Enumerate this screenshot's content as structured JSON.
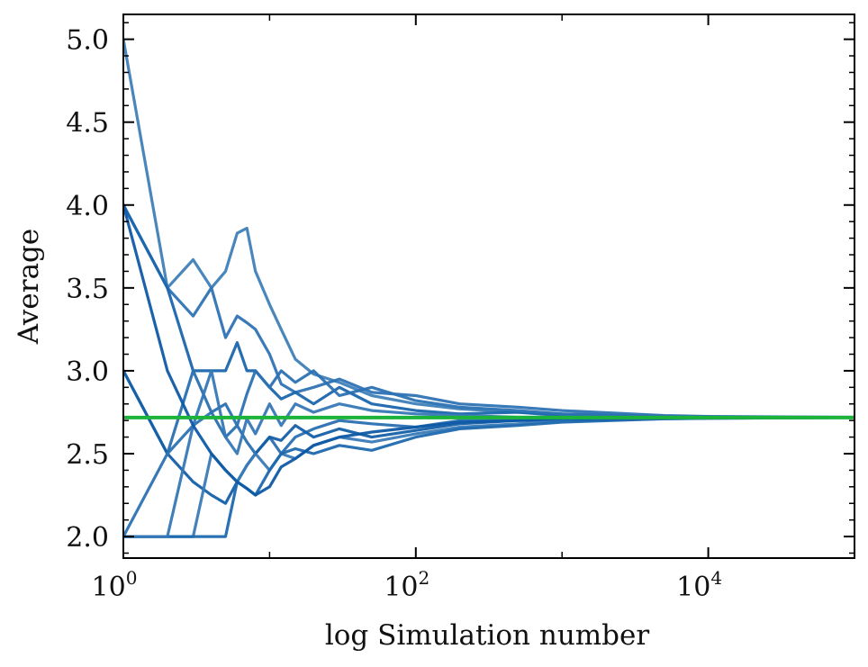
{
  "chart_data": {
    "type": "line",
    "title": "",
    "xlabel": "log Simulation number",
    "ylabel": "Average",
    "xscale": "log",
    "xlim": [
      1,
      100000
    ],
    "ylim": [
      1.87,
      5.15
    ],
    "grid": false,
    "legend": "none",
    "x_ticks": [
      {
        "value": 1,
        "base": "10",
        "exp": "0"
      },
      {
        "value": 100,
        "base": "10",
        "exp": "2"
      },
      {
        "value": 10000,
        "base": "10",
        "exp": "4"
      }
    ],
    "y_ticks": [
      {
        "value": 2.0,
        "label": "2.0"
      },
      {
        "value": 2.5,
        "label": "2.5"
      },
      {
        "value": 3.0,
        "label": "3.0"
      },
      {
        "value": 3.5,
        "label": "3.5"
      },
      {
        "value": 4.0,
        "label": "4.0"
      },
      {
        "value": 4.5,
        "label": "4.5"
      },
      {
        "value": 5.0,
        "label": "5.0"
      }
    ],
    "series": [
      {
        "x": [
          1,
          2,
          3,
          4,
          5,
          6,
          7,
          8,
          10,
          12,
          15,
          20,
          30,
          50,
          100,
          200,
          500,
          1000,
          5000,
          10000,
          100000
        ],
        "values": [
          5.0,
          3.5,
          3.67,
          3.5,
          3.6,
          3.83,
          3.86,
          3.6,
          3.4,
          3.25,
          3.07,
          2.98,
          2.93,
          2.85,
          2.8,
          2.77,
          2.75,
          2.74,
          2.725,
          2.722,
          2.719
        ]
      },
      {
        "x": [
          1,
          2,
          3,
          4,
          5,
          6,
          7,
          8,
          10,
          12,
          15,
          20,
          30,
          50,
          100,
          200,
          500,
          1000,
          5000,
          10000,
          100000
        ],
        "values": [
          4.0,
          3.5,
          3.33,
          3.5,
          3.2,
          3.33,
          3.29,
          3.25,
          3.1,
          2.92,
          2.87,
          2.9,
          2.95,
          2.87,
          2.85,
          2.8,
          2.78,
          2.76,
          2.73,
          2.725,
          2.72
        ]
      },
      {
        "x": [
          1,
          2,
          3,
          4,
          5,
          6,
          7,
          8,
          10,
          12,
          15,
          20,
          30,
          50,
          100,
          200,
          500,
          1000,
          5000,
          10000,
          100000
        ],
        "values": [
          4.0,
          3.5,
          3.0,
          3.0,
          3.0,
          3.17,
          3.0,
          3.0,
          2.9,
          2.83,
          2.87,
          2.8,
          2.9,
          2.8,
          2.76,
          2.74,
          2.75,
          2.73,
          2.72,
          2.72,
          2.718
        ]
      },
      {
        "x": [
          1,
          2,
          3,
          4,
          5,
          6,
          7,
          8,
          10,
          12,
          15,
          20,
          30,
          50,
          100,
          200,
          500,
          1000,
          5000,
          10000,
          100000
        ],
        "values": [
          3.0,
          2.5,
          3.0,
          2.75,
          2.6,
          2.67,
          2.57,
          2.5,
          2.6,
          2.5,
          2.6,
          2.65,
          2.7,
          2.68,
          2.66,
          2.7,
          2.7,
          2.71,
          2.715,
          2.716,
          2.718
        ]
      },
      {
        "x": [
          1,
          2,
          3,
          4,
          5,
          6,
          7,
          8,
          10,
          12,
          15,
          20,
          30,
          50,
          100,
          200,
          500,
          1000,
          5000,
          10000,
          100000
        ],
        "values": [
          3.0,
          2.5,
          2.33,
          2.25,
          2.2,
          2.33,
          2.43,
          2.5,
          2.6,
          2.58,
          2.67,
          2.6,
          2.65,
          2.6,
          2.64,
          2.68,
          2.7,
          2.7,
          2.712,
          2.715,
          2.718
        ]
      },
      {
        "x": [
          1,
          2,
          3,
          4,
          5,
          6,
          7,
          8,
          10,
          12,
          15,
          20,
          30,
          50,
          100,
          200,
          500,
          1000,
          5000,
          10000,
          100000
        ],
        "values": [
          2.0,
          2.0,
          2.0,
          2.5,
          2.4,
          2.33,
          2.43,
          2.5,
          2.4,
          2.5,
          2.47,
          2.55,
          2.6,
          2.57,
          2.62,
          2.66,
          2.68,
          2.7,
          2.71,
          2.714,
          2.718
        ]
      },
      {
        "x": [
          1,
          2,
          3,
          4,
          5,
          6,
          7,
          8,
          10,
          12,
          15,
          20,
          30,
          50,
          100,
          200,
          500,
          1000,
          5000,
          10000,
          100000
        ],
        "values": [
          2.0,
          2.0,
          2.0,
          2.0,
          2.0,
          2.33,
          2.29,
          2.25,
          2.4,
          2.5,
          2.53,
          2.5,
          2.55,
          2.52,
          2.6,
          2.65,
          2.67,
          2.69,
          2.71,
          2.713,
          2.718
        ]
      },
      {
        "x": [
          1,
          2,
          3,
          4,
          5,
          6,
          7,
          8,
          10,
          12,
          15,
          20,
          30,
          50,
          100,
          200,
          500,
          1000,
          5000,
          10000,
          100000
        ],
        "values": [
          2.0,
          2.5,
          2.67,
          2.75,
          2.8,
          2.67,
          2.86,
          3.0,
          2.9,
          3.0,
          2.93,
          3.0,
          2.85,
          2.9,
          2.82,
          2.78,
          2.76,
          2.74,
          2.725,
          2.72,
          2.718
        ]
      },
      {
        "x": [
          1,
          2,
          3,
          4,
          5,
          6,
          7,
          8,
          10,
          12,
          15,
          20,
          30,
          50,
          100,
          200,
          500,
          1000,
          5000,
          10000,
          100000
        ],
        "values": [
          2.0,
          2.0,
          2.67,
          3.0,
          2.6,
          2.5,
          2.71,
          2.62,
          2.8,
          2.67,
          2.8,
          2.75,
          2.8,
          2.76,
          2.74,
          2.73,
          2.72,
          2.72,
          2.718,
          2.718,
          2.718
        ]
      },
      {
        "x": [
          1,
          2,
          3,
          4,
          5,
          6,
          7,
          8,
          10,
          12,
          15,
          20,
          30,
          50,
          100,
          200,
          500,
          1000,
          5000,
          10000,
          100000
        ],
        "values": [
          4.0,
          3.0,
          2.67,
          2.5,
          2.4,
          2.33,
          2.29,
          2.25,
          2.3,
          2.42,
          2.47,
          2.55,
          2.6,
          2.63,
          2.66,
          2.69,
          2.7,
          2.71,
          2.715,
          2.717,
          2.718
        ]
      }
    ],
    "reference_line": {
      "value": 2.718
    },
    "colors": {
      "series": [
        "#3f7fb8",
        "#2f73b4",
        "#1a66ad",
        "#2a6fb1",
        "#155fa8",
        "#3b7bb7",
        "#1e69ae",
        "#2c72b3",
        "#3678b6",
        "#0f5aa5"
      ],
      "reference": "#1cb33a",
      "axis": "#000000"
    }
  }
}
